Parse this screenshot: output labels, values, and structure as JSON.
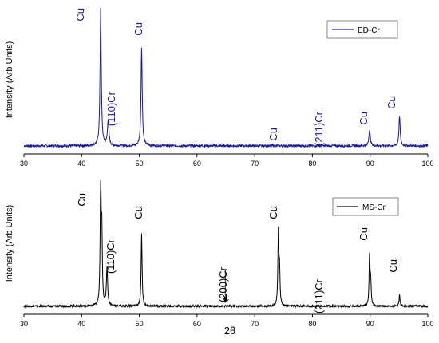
{
  "chart_data": [
    {
      "type": "line",
      "xlim": [
        30,
        100
      ],
      "xticks": [
        30,
        40,
        50,
        60,
        70,
        80,
        90,
        100
      ],
      "ylabel": "Intensity (Arb Units)",
      "ylim": [
        0,
        100
      ],
      "grid": false,
      "legend_position": "top-right",
      "series": [
        {
          "name": "ED-Cr",
          "color": "#1a1a99",
          "baseline": 4,
          "peaks": [
            {
              "x": 43.3,
              "height": 100,
              "width": 0.25
            },
            {
              "x": 44.6,
              "height": 22,
              "width": 0.3
            },
            {
              "x": 50.4,
              "height": 72,
              "width": 0.25
            },
            {
              "x": 74.2,
              "height": 4,
              "width": 0.25
            },
            {
              "x": 89.9,
              "height": 15,
              "width": 0.3
            },
            {
              "x": 95.1,
              "height": 25,
              "width": 0.25
            }
          ]
        }
      ],
      "annotations": [
        {
          "text": "Cu",
          "x": 43.3,
          "rotation": -90
        },
        {
          "text": "(110)Cr",
          "x": 44.6,
          "rotation": -90
        },
        {
          "text": "Cu",
          "x": 50.4,
          "rotation": -90
        },
        {
          "text": "Cu",
          "x": 74.2,
          "rotation": -90
        },
        {
          "text": "(211)Cr",
          "x": 81.6,
          "rotation": -90
        },
        {
          "text": "Cu",
          "x": 89.9,
          "rotation": -90
        },
        {
          "text": "Cu",
          "x": 95.1,
          "rotation": -90
        }
      ]
    },
    {
      "type": "line",
      "xlim": [
        30,
        100
      ],
      "xticks": [
        30,
        40,
        50,
        60,
        70,
        80,
        90,
        100
      ],
      "xlabel": "2θ",
      "ylabel": "Intensity (Arb Units)",
      "ylim": [
        0,
        100
      ],
      "grid": false,
      "legend_position": "top-right",
      "series": [
        {
          "name": "MS-Cr",
          "color": "#000000",
          "baseline": 2,
          "peaks": [
            {
              "x": 43.3,
              "height": 98,
              "width": 0.2
            },
            {
              "x": 43.5,
              "height": 55,
              "width": 0.2
            },
            {
              "x": 44.4,
              "height": 32,
              "width": 0.25
            },
            {
              "x": 50.4,
              "height": 58,
              "width": 0.2
            },
            {
              "x": 74.1,
              "height": 58,
              "width": 0.2
            },
            {
              "x": 74.3,
              "height": 28,
              "width": 0.2
            },
            {
              "x": 81.6,
              "height": 2,
              "width": 0.3
            },
            {
              "x": 89.9,
              "height": 40,
              "width": 0.2
            },
            {
              "x": 90.1,
              "height": 20,
              "width": 0.2
            },
            {
              "x": 95.1,
              "height": 11,
              "width": 0.2
            }
          ]
        }
      ],
      "annotations": [
        {
          "text": "Cu",
          "x": 43.3,
          "rotation": -90
        },
        {
          "text": "(110)Cr",
          "x": 44.4,
          "rotation": -90
        },
        {
          "text": "Cu",
          "x": 50.4,
          "rotation": -90
        },
        {
          "text": "(200)Cr",
          "x": 64.9,
          "rotation": -90,
          "arrow": true
        },
        {
          "text": "Cu",
          "x": 74.1,
          "rotation": -90
        },
        {
          "text": "(211)Cr",
          "x": 81.6,
          "rotation": -90
        },
        {
          "text": "Cu",
          "x": 89.9,
          "rotation": -90
        },
        {
          "text": "Cu",
          "x": 95.1,
          "rotation": -90
        }
      ]
    }
  ]
}
